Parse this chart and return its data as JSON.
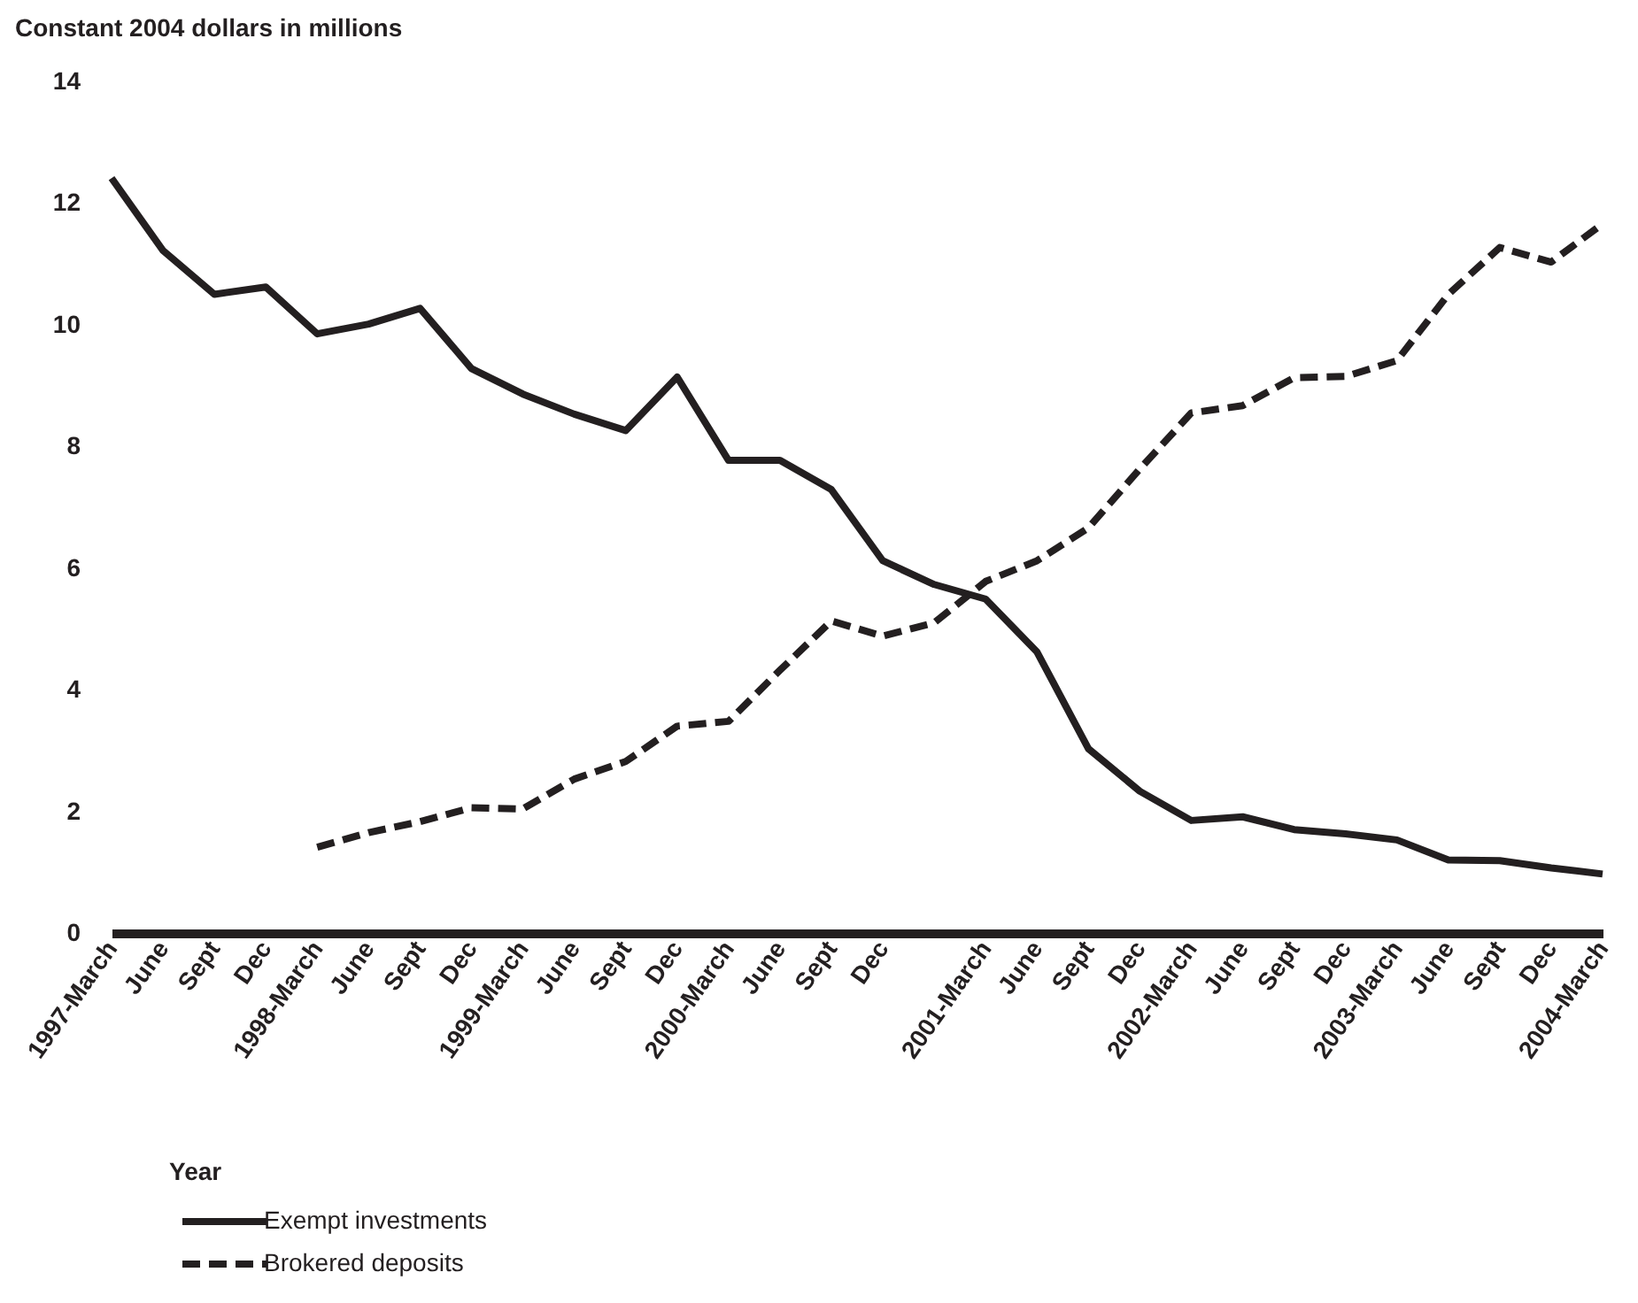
{
  "chart_data": {
    "type": "line",
    "ylabel": "Constant 2004 dollars in millions",
    "xlabel": "Year",
    "categories": [
      "1997-March",
      "June",
      "Sept",
      "Dec",
      "1998-March",
      "June",
      "Sept",
      "Dec",
      "1999-March",
      "June",
      "Sept",
      "Dec",
      "2000-March",
      "June",
      "Sept",
      "Dec",
      null,
      "2001-March",
      "June",
      "Sept",
      "Dec",
      "2002-March",
      "June",
      "Sept",
      "Dec",
      "2003-March",
      "June",
      "Sept",
      "Dec",
      "2004-March"
    ],
    "ylim": [
      0,
      14
    ],
    "yticks": [
      0,
      2,
      4,
      6,
      8,
      10,
      12,
      14
    ],
    "grid": false,
    "legend": "bottom left",
    "series": [
      {
        "name": "Exempt investments",
        "color": "#231f20",
        "line_style": "solid",
        "values": [
          12.41,
          11.22,
          10.5,
          10.62,
          9.85,
          10.01,
          10.27,
          9.28,
          8.86,
          8.53,
          8.26,
          9.14,
          7.77,
          7.77,
          7.29,
          6.12,
          5.73,
          5.49,
          4.62,
          3.03,
          2.33,
          1.85,
          1.91,
          1.7,
          1.63,
          1.53,
          1.2,
          1.19,
          1.07,
          0.97
        ]
      },
      {
        "name": "Brokered deposits",
        "color": "#231f20",
        "line_style": "dashed",
        "values": [
          null,
          null,
          null,
          null,
          1.41,
          1.65,
          1.83,
          2.06,
          2.04,
          2.53,
          2.82,
          3.4,
          3.48,
          4.32,
          5.13,
          4.88,
          5.1,
          5.78,
          6.12,
          6.66,
          7.63,
          8.55,
          8.67,
          9.13,
          9.15,
          9.41,
          10.5,
          11.27,
          11.03,
          11.66
        ]
      }
    ]
  }
}
